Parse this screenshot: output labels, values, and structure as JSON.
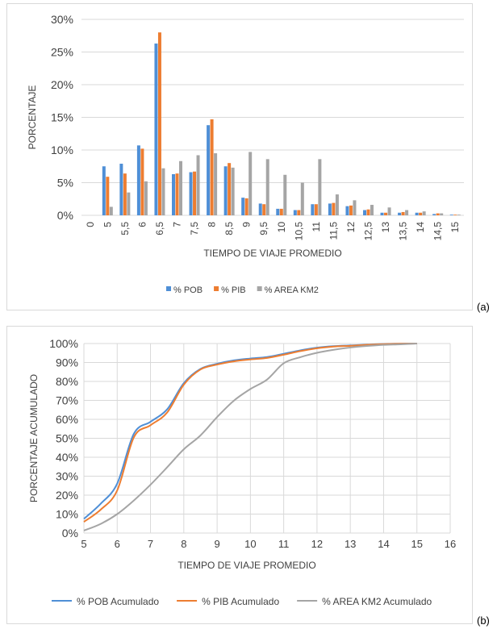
{
  "panels": {
    "a_letter": "(a)",
    "b_letter": "(b)"
  },
  "chart_data": [
    {
      "type": "bar",
      "xlabel": "TIEMPO DE VIAJE PROMEDIO",
      "ylabel": "PORCENTAJE",
      "ylim": [
        0,
        30
      ],
      "yticks": [
        "0%",
        "5%",
        "10%",
        "15%",
        "20%",
        "25%",
        "30%"
      ],
      "grid": true,
      "legend_position": "bottom",
      "categories": [
        "0",
        "5",
        "5,5",
        "6",
        "6,5",
        "7",
        "7,5",
        "8",
        "8,5",
        "9",
        "9,5",
        "10",
        "10,5",
        "11",
        "11,5",
        "12",
        "12,5",
        "13",
        "13,5",
        "14",
        "14,5",
        "15"
      ],
      "series": [
        {
          "name": "% POB",
          "color": "#4f8fd6",
          "values": [
            0,
            7.5,
            7.9,
            10.7,
            26.3,
            6.3,
            6.6,
            13.8,
            7.5,
            2.7,
            1.8,
            1.0,
            0.8,
            1.7,
            1.8,
            1.4,
            0.8,
            0.4,
            0.4,
            0.4,
            0.2,
            0.1
          ]
        },
        {
          "name": "% PIB",
          "color": "#ed7d31",
          "values": [
            0,
            5.9,
            6.4,
            10.2,
            28.0,
            6.4,
            6.7,
            14.7,
            8.0,
            2.6,
            1.7,
            1.0,
            0.8,
            1.7,
            1.9,
            1.5,
            0.9,
            0.4,
            0.5,
            0.4,
            0.3,
            0.1
          ]
        },
        {
          "name": "% AREA KM2",
          "color": "#a5a5a5",
          "values": [
            0,
            1.3,
            3.5,
            5.2,
            7.2,
            8.3,
            9.2,
            9.5,
            7.3,
            9.7,
            8.6,
            6.2,
            5.0,
            8.6,
            3.2,
            2.3,
            1.6,
            1.2,
            0.8,
            0.6,
            0.3,
            0.1
          ]
        }
      ]
    },
    {
      "type": "line",
      "xlabel": "TIEMPO DE VIAJE PROMEDIO",
      "ylabel": "PORCENTAJE ACUMULADO",
      "xlim": [
        5,
        16
      ],
      "ylim": [
        0,
        100
      ],
      "xticks": [
        "5",
        "6",
        "7",
        "8",
        "9",
        "10",
        "11",
        "12",
        "13",
        "14",
        "15",
        "16"
      ],
      "yticks": [
        "0%",
        "10%",
        "20%",
        "30%",
        "40%",
        "50%",
        "60%",
        "70%",
        "80%",
        "90%",
        "100%"
      ],
      "grid": true,
      "legend_position": "bottom",
      "x": [
        5,
        5.5,
        6,
        6.5,
        7,
        7.5,
        8,
        8.5,
        9,
        9.5,
        10,
        10.5,
        11,
        11.5,
        12,
        12.5,
        13,
        13.5,
        14,
        14.5,
        15
      ],
      "series": [
        {
          "name": "% POB Acumulado",
          "color": "#4f8fd6",
          "values": [
            7.5,
            15.4,
            26.1,
            52.4,
            58.7,
            65.3,
            79.1,
            86.6,
            89.3,
            91.1,
            92.1,
            92.9,
            94.6,
            96.4,
            97.8,
            98.6,
            99.0,
            99.4,
            99.8,
            99.9,
            100
          ]
        },
        {
          "name": "% PIB Acumulado",
          "color": "#ed7d31",
          "values": [
            5.9,
            12.3,
            22.5,
            50.5,
            56.9,
            63.6,
            78.3,
            86.3,
            88.9,
            90.6,
            91.6,
            92.4,
            94.1,
            96.0,
            97.5,
            98.4,
            98.8,
            99.3,
            99.7,
            99.9,
            100
          ]
        },
        {
          "name": "% AREA KM2 Acumulado",
          "color": "#a5a5a5",
          "values": [
            1.3,
            4.8,
            10.0,
            17.2,
            25.5,
            34.7,
            44.2,
            51.5,
            61.2,
            69.8,
            76.0,
            81.0,
            89.6,
            92.8,
            95.1,
            96.7,
            97.9,
            98.7,
            99.3,
            99.6,
            100
          ]
        }
      ]
    }
  ]
}
